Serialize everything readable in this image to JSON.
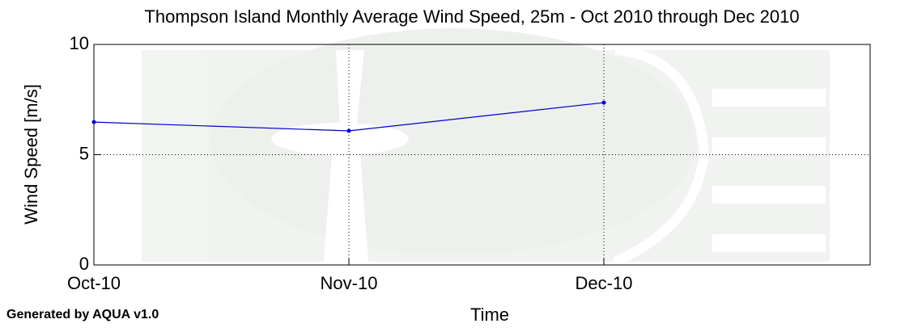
{
  "chart_data": {
    "type": "line",
    "title": "Thompson Island Monthly Average Wind Speed, 25m - Oct 2010 through Dec 2010",
    "x_label": "Time",
    "y_label": "Wind Speed [m/s]",
    "footer": "Generated by AQUA v1.0",
    "categories": [
      "Oct-10",
      "Nov-10",
      "Dec-10"
    ],
    "series": [
      {
        "name": "Wind Speed",
        "color": "#0000cc",
        "values": [
          6.48,
          6.08,
          7.36
        ]
      }
    ],
    "ylim": [
      0,
      10
    ],
    "yticks": [
      0,
      5,
      10
    ],
    "grid": true
  }
}
